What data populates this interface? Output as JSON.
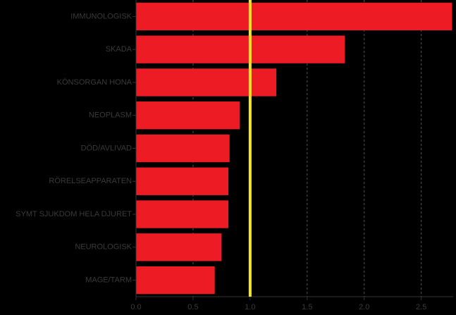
{
  "chart_data": {
    "type": "barh",
    "categories": [
      "IMMUNOLOGISK",
      "SKADA",
      "KÖNSORGAN HONA",
      "NEOPLASM",
      "DÖD/AVLIVAD",
      "RÖRELSEAPPARATEN",
      "SYMT SJUKDOM HELA DJURET",
      "NEUROLOGISK",
      "MAGE/TARM"
    ],
    "values": [
      2.77,
      1.83,
      1.23,
      0.91,
      0.82,
      0.81,
      0.81,
      0.75,
      0.69
    ],
    "color": "#ed1c24",
    "xlim": [
      0,
      2.78
    ],
    "xticks": [
      {
        "value": 0,
        "label": "0.0"
      },
      {
        "value": 0.5,
        "label": "0.5"
      },
      {
        "value": 1,
        "label": "1.0"
      },
      {
        "value": 1.5,
        "label": "1.5"
      },
      {
        "value": 2,
        "label": "2.0"
      },
      {
        "value": 2.5,
        "label": "2.5"
      }
    ],
    "grid": true,
    "reference_line": {
      "value": 1,
      "color": "#f5e71e"
    }
  }
}
